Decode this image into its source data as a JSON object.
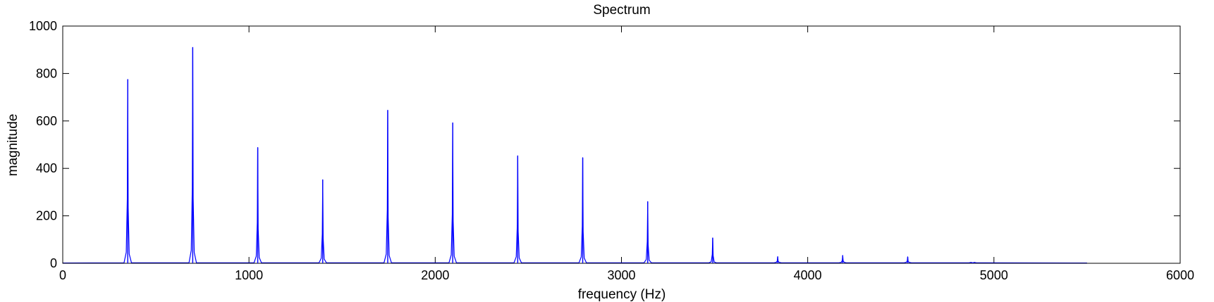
{
  "chart_data": {
    "type": "line",
    "title": "Spectrum",
    "xlabel": "frequency (Hz)",
    "ylabel": "magnitude",
    "xlim": [
      0,
      6000
    ],
    "ylim": [
      0,
      1000
    ],
    "xticks": [
      0,
      1000,
      2000,
      3000,
      4000,
      5000,
      6000
    ],
    "yticks": [
      0,
      200,
      400,
      600,
      800,
      1000
    ],
    "xtick_labels": [
      "0",
      "1000",
      "2000",
      "3000",
      "4000",
      "5000",
      "6000"
    ],
    "ytick_labels": [
      "0",
      "200",
      "400",
      "600",
      "800",
      "1000"
    ],
    "grid": false,
    "line_color": "#0000ff",
    "peaks": [
      {
        "x": 349,
        "y": 775
      },
      {
        "x": 698,
        "y": 910
      },
      {
        "x": 1047,
        "y": 488
      },
      {
        "x": 1396,
        "y": 352
      },
      {
        "x": 1745,
        "y": 645
      },
      {
        "x": 2094,
        "y": 592
      },
      {
        "x": 2443,
        "y": 453
      },
      {
        "x": 2792,
        "y": 445
      },
      {
        "x": 3141,
        "y": 260
      },
      {
        "x": 3490,
        "y": 107
      },
      {
        "x": 3839,
        "y": 28
      },
      {
        "x": 4188,
        "y": 33
      },
      {
        "x": 4537,
        "y": 27
      },
      {
        "x": 4886,
        "y": 3
      }
    ]
  }
}
